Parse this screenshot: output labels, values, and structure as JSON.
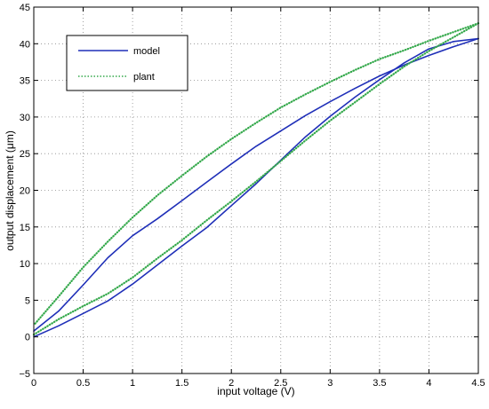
{
  "colors": {
    "model": "#1f2fb8",
    "plant": "#33a84a",
    "grid": "#8a8a8a",
    "axis": "#000000"
  },
  "chart_data": {
    "type": "line",
    "title": "",
    "xlabel": "input voltage (V)",
    "ylabel": "output displacement (μm)",
    "xlim": [
      0,
      4.5
    ],
    "ylim": [
      -5,
      45
    ],
    "xticks": [
      0,
      0.5,
      1,
      1.5,
      2,
      2.5,
      3,
      3.5,
      4,
      4.5
    ],
    "xtick_labels": [
      "0",
      "0.5",
      "1",
      "1.5",
      "2",
      "2.5",
      "3",
      "3.5",
      "4",
      "4.5"
    ],
    "yticks": [
      -5,
      0,
      5,
      10,
      15,
      20,
      25,
      30,
      35,
      40,
      45
    ],
    "ytick_labels": [
      "−5",
      "0",
      "5",
      "10",
      "15",
      "20",
      "25",
      "30",
      "35",
      "40",
      "45"
    ],
    "grid": true,
    "grid_style": "dotted",
    "legend": {
      "position": "top-left",
      "entries": [
        "model",
        "plant"
      ]
    },
    "series": [
      {
        "name": "model",
        "style": "solid",
        "segments": [
          {
            "branch": "ascending",
            "x": [
              0,
              0.25,
              0.5,
              0.75,
              1.0,
              1.25,
              1.5,
              1.75,
              2.0,
              2.25,
              2.5,
              2.75,
              3.0,
              3.25,
              3.5,
              3.75,
              4.0,
              4.25,
              4.5
            ],
            "y": [
              0.0,
              1.5,
              3.2,
              4.9,
              7.2,
              9.8,
              12.4,
              14.9,
              17.9,
              20.9,
              24.1,
              27.3,
              30.1,
              32.7,
              35.1,
              37.4,
              39.3,
              40.3,
              40.7
            ]
          },
          {
            "branch": "descending",
            "x": [
              4.5,
              4.25,
              4.0,
              3.75,
              3.5,
              3.25,
              3.0,
              2.75,
              2.5,
              2.25,
              2.0,
              1.75,
              1.5,
              1.25,
              1.0,
              0.75,
              0.5,
              0.25,
              0
            ],
            "y": [
              40.7,
              39.6,
              38.4,
              37.1,
              35.6,
              33.9,
              32.1,
              30.2,
              28.1,
              26.0,
              23.6,
              21.1,
              18.6,
              16.1,
              13.8,
              10.8,
              7.1,
              3.5,
              0.8
            ]
          }
        ]
      },
      {
        "name": "plant",
        "style": "dotted",
        "segments": [
          {
            "branch": "ascending",
            "x": [
              0,
              0.25,
              0.5,
              0.75,
              1.0,
              1.25,
              1.5,
              1.75,
              2.0,
              2.25,
              2.5,
              2.75,
              3.0,
              3.25,
              3.5,
              3.75,
              4.0,
              4.25,
              4.5
            ],
            "y": [
              0.3,
              2.4,
              4.2,
              5.9,
              8.1,
              10.7,
              13.2,
              15.9,
              18.5,
              21.2,
              24.0,
              26.8,
              29.5,
              32.0,
              34.5,
              36.9,
              39.0,
              40.9,
              42.8
            ]
          },
          {
            "branch": "descending",
            "x": [
              4.5,
              4.25,
              4.0,
              3.75,
              3.5,
              3.25,
              3.0,
              2.75,
              2.5,
              2.25,
              2.0,
              1.75,
              1.5,
              1.25,
              1.0,
              0.75,
              0.5,
              0.25,
              0
            ],
            "y": [
              42.8,
              41.6,
              40.4,
              39.1,
              37.9,
              36.4,
              34.8,
              33.1,
              31.3,
              29.2,
              27.0,
              24.6,
              22.0,
              19.3,
              16.3,
              13.0,
              9.5,
              5.5,
              1.6
            ]
          }
        ]
      }
    ]
  }
}
